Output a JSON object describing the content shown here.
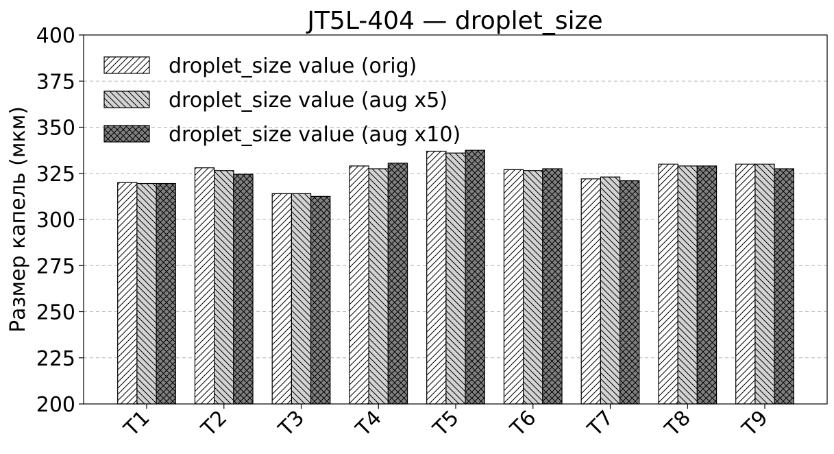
{
  "chart_data": {
    "type": "bar",
    "title": "JT5L-404 — droplet_size",
    "xlabel": "",
    "ylabel": "Размер капель (мкм)",
    "ylim": [
      200,
      400
    ],
    "yticks": [
      200,
      225,
      250,
      275,
      300,
      325,
      350,
      375,
      400
    ],
    "categories": [
      "T1",
      "T2",
      "T3",
      "T4",
      "T5",
      "T6",
      "T7",
      "T8",
      "T9"
    ],
    "grid": "y-dashed",
    "legend_position": "top-left",
    "series": [
      {
        "name": "droplet_size value (orig)",
        "pattern": "forward-hatch",
        "color": "#ffffff",
        "values": [
          320,
          328,
          314,
          329,
          337,
          327,
          322,
          330,
          330
        ]
      },
      {
        "name": "droplet_size value (aug x5)",
        "pattern": "back-hatch",
        "color": "#d3d3d3",
        "values": [
          319.5,
          326.5,
          314,
          327.5,
          336,
          326.5,
          323,
          329,
          330
        ]
      },
      {
        "name": "droplet_size value (aug x10)",
        "pattern": "cross-hatch",
        "color": "#808080",
        "values": [
          319.5,
          324.5,
          312.5,
          330.5,
          337.5,
          327.5,
          321,
          329,
          327.5
        ]
      }
    ]
  }
}
